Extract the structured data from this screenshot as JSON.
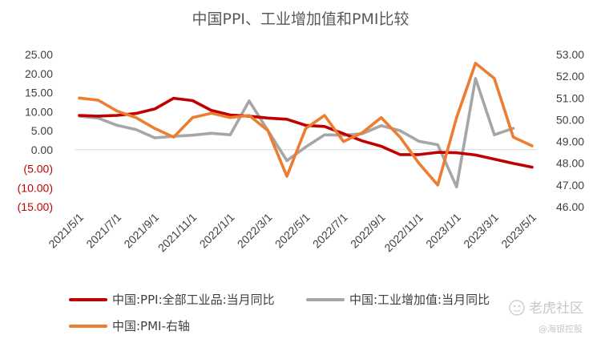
{
  "chart_data": {
    "type": "line",
    "title": "中国PPI、工业增加值和PMI比较",
    "x": [
      "2021/5/1",
      "2021/6/1",
      "2021/7/1",
      "2021/8/1",
      "2021/9/1",
      "2021/10/1",
      "2021/11/1",
      "2021/12/1",
      "2022/1/1",
      "2022/2/1",
      "2022/3/1",
      "2022/4/1",
      "2022/5/1",
      "2022/6/1",
      "2022/7/1",
      "2022/8/1",
      "2022/9/1",
      "2022/10/1",
      "2022/11/1",
      "2022/12/1",
      "2023/1/1",
      "2023/2/1",
      "2023/3/1",
      "2023/4/1",
      "2023/5/1"
    ],
    "x_tick_labels": [
      "2021/5/1",
      "2021/7/1",
      "2021/9/1",
      "2021/11/1",
      "2022/1/1",
      "2022/3/1",
      "2022/5/1",
      "2022/7/1",
      "2022/9/1",
      "2022/11/1",
      "2023/1/1",
      "2023/3/1",
      "2023/5/1"
    ],
    "y_left": {
      "range": [
        -15,
        25
      ],
      "tick_values": [
        25,
        20,
        15,
        10,
        5,
        0,
        -5,
        -10,
        -15
      ],
      "tick_labels": [
        "25.00",
        "20.00",
        "15.00",
        "10.00",
        "5.00",
        "0.00",
        "(5.00)",
        "(10.00)",
        "(15.00)"
      ],
      "negative_color": "#c00000",
      "positive_color": "#404040"
    },
    "y_right": {
      "range": [
        46,
        53
      ],
      "tick_values": [
        53,
        52,
        51,
        50,
        49,
        48,
        47,
        46
      ],
      "tick_labels": [
        "53.00",
        "52.00",
        "51.00",
        "50.00",
        "49.00",
        "48.00",
        "47.00",
        "46.00"
      ]
    },
    "grid": false,
    "legend_position": "bottom",
    "series": [
      {
        "name": "中国:PPI:全部工业品:当月同比",
        "axis": "left",
        "color": "#c00000",
        "values": [
          9.0,
          8.8,
          9.0,
          9.5,
          10.7,
          13.5,
          12.9,
          10.3,
          9.1,
          8.8,
          8.3,
          8.0,
          6.4,
          6.1,
          4.2,
          2.3,
          0.9,
          -1.3,
          -1.3,
          -0.7,
          -0.8,
          -1.4,
          -2.5,
          -3.6,
          -4.6
        ]
      },
      {
        "name": "中国:工业增加值:当月同比",
        "axis": "left",
        "color": "#a6a6a6",
        "values": [
          8.8,
          8.3,
          6.4,
          5.3,
          3.1,
          3.5,
          3.8,
          4.3,
          3.9,
          12.8,
          5.0,
          -2.9,
          0.7,
          3.9,
          3.8,
          4.2,
          6.3,
          5.0,
          2.2,
          1.3,
          -9.8,
          18.7,
          3.9,
          5.6,
          null
        ]
      },
      {
        "name": "中国:PMI-右轴",
        "axis": "right",
        "color": "#ed7d31",
        "values": [
          51.0,
          50.9,
          50.4,
          50.1,
          49.6,
          49.2,
          50.1,
          50.3,
          50.1,
          50.2,
          49.5,
          47.4,
          49.6,
          50.2,
          49.0,
          49.4,
          50.1,
          49.2,
          48.0,
          47.0,
          50.1,
          52.6,
          51.9,
          49.2,
          48.8
        ]
      }
    ]
  },
  "watermark": {
    "brand": "老虎社区",
    "author": "@海银控股"
  }
}
